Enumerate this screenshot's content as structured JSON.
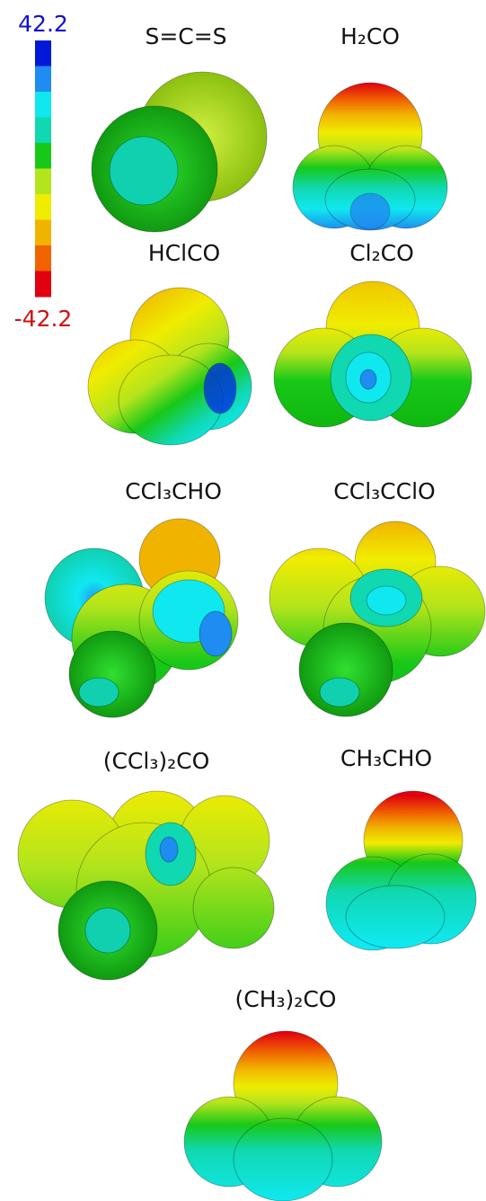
{
  "colorbar": {
    "max": 42.2,
    "min": -42.2,
    "colors": [
      "#0018d8",
      "#1e8cf0",
      "#10e8f0",
      "#10d8b0",
      "#18c818",
      "#b4e41c",
      "#f0ec00",
      "#f0b400",
      "#f06400",
      "#e00010"
    ]
  },
  "molecules": [
    "S=C=S",
    "H₂CO",
    "HClCO",
    "Cl₂CO",
    "CCl₃CHO",
    "CCl₃CClO",
    "(CCl₃)₂CO",
    "CH₃CHO",
    "(CH₃)₂CO"
  ]
}
